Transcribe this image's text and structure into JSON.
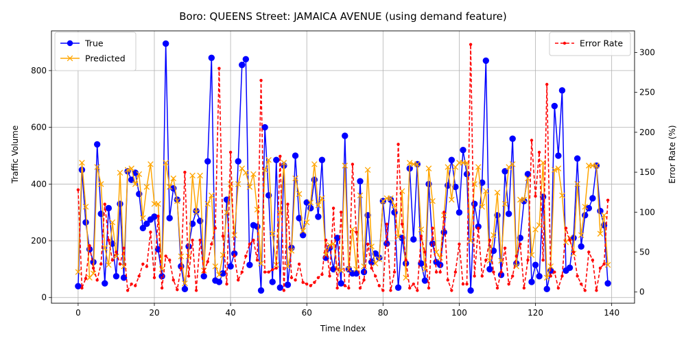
{
  "chart_data": {
    "type": "line",
    "title": "Boro: QUEENS Street: JAMAICA AVENUE (using demand feature)",
    "xlabel": "Time Index",
    "ylabel": "Traffic Volume",
    "y2label": "Error Rate (%)",
    "xlim": [
      -7,
      146
    ],
    "ylim": [
      -20,
      940
    ],
    "y2lim": [
      -14,
      327
    ],
    "xticks": [
      0,
      20,
      40,
      60,
      80,
      100,
      120,
      140
    ],
    "yticks": [
      0,
      200,
      400,
      600,
      800
    ],
    "y2ticks": [
      0,
      50,
      100,
      150,
      200,
      250,
      300
    ],
    "grid": true,
    "legend_left_position": "upper-left",
    "legend_right_position": "upper-right",
    "series": [
      {
        "name": "True",
        "axis": "left",
        "color": "#0000ff",
        "marker": "circle",
        "values": [
          40,
          450,
          265,
          170,
          125,
          540,
          295,
          50,
          315,
          190,
          75,
          330,
          70,
          445,
          415,
          440,
          365,
          245,
          260,
          275,
          285,
          170,
          75,
          895,
          280,
          385,
          345,
          110,
          30,
          180,
          260,
          305,
          270,
          75,
          480,
          845,
          60,
          55,
          85,
          345,
          110,
          155,
          480,
          820,
          840,
          115,
          255,
          250,
          25,
          600,
          360,
          55,
          485,
          35,
          465,
          45,
          175,
          500,
          280,
          220,
          335,
          315,
          415,
          285,
          485,
          140,
          175,
          100,
          210,
          50,
          570,
          100,
          85,
          85,
          410,
          90,
          290,
          125,
          155,
          140,
          340,
          190,
          345,
          300,
          35,
          210,
          120,
          455,
          205,
          470,
          120,
          60,
          400,
          190,
          125,
          115,
          230,
          395,
          485,
          390,
          300,
          520,
          435,
          25,
          330,
          250,
          405,
          835,
          100,
          165,
          290,
          80,
          445,
          295,
          560,
          120,
          210,
          340,
          435,
          55,
          115,
          75,
          355,
          30,
          95,
          675,
          500,
          730,
          95,
          105,
          210,
          490,
          180,
          290,
          315,
          350,
          465,
          305,
          255,
          50
        ]
      },
      {
        "name": "Predicted",
        "axis": "left",
        "color": "#ffa500",
        "marker": "x",
        "values": [
          90,
          475,
          320,
          70,
          85,
          460,
          400,
          175,
          115,
          265,
          145,
          440,
          110,
          450,
          455,
          400,
          435,
          280,
          390,
          470,
          330,
          330,
          100,
          475,
          390,
          420,
          340,
          145,
          50,
          145,
          430,
          300,
          430,
          95,
          330,
          360,
          110,
          80,
          150,
          300,
          400,
          220,
          400,
          455,
          440,
          390,
          435,
          310,
          120,
          450,
          485,
          225,
          115,
          300,
          475,
          110,
          165,
          420,
          365,
          235,
          265,
          335,
          470,
          325,
          350,
          150,
          185,
          190,
          100,
          95,
          465,
          100,
          240,
          100,
          360,
          110,
          450,
          180,
          120,
          135,
          340,
          350,
          350,
          325,
          215,
          375,
          70,
          475,
          470,
          470,
          240,
          100,
          455,
          340,
          160,
          140,
          290,
          460,
          345,
          460,
          475,
          475,
          475,
          200,
          400,
          460,
          320,
          375,
          130,
          220,
          370,
          130,
          330,
          460,
          470,
          110,
          345,
          345,
          420,
          150,
          240,
          255,
          475,
          70,
          110,
          450,
          455,
          360,
          195,
          210,
          155,
          400,
          220,
          320,
          465,
          465,
          465,
          225,
          290,
          115
        ]
      },
      {
        "name": "Error Rate",
        "axis": "right",
        "color": "#ff0000",
        "dashed": true,
        "marker": "dot",
        "values": [
          128,
          5,
          17,
          58,
          30,
          15,
          35,
          110,
          65,
          40,
          50,
          35,
          55,
          2,
          10,
          8,
          20,
          35,
          32,
          75,
          18,
          95,
          5,
          45,
          40,
          15,
          3,
          30,
          150,
          20,
          65,
          2,
          65,
          25,
          38,
          60,
          80,
          280,
          70,
          10,
          175,
          45,
          15,
          25,
          45,
          60,
          65,
          40,
          265,
          25,
          25,
          28,
          30,
          170,
          2,
          110,
          18,
          15,
          35,
          12,
          10,
          8,
          12,
          18,
          22,
          65,
          20,
          105,
          5,
          100,
          8,
          5,
          160,
          75,
          5,
          15,
          60,
          30,
          20,
          8,
          2,
          85,
          2,
          25,
          185,
          85,
          40,
          5,
          10,
          2,
          70,
          50,
          5,
          80,
          25,
          25,
          100,
          15,
          2,
          25,
          60,
          10,
          10,
          310,
          20,
          80,
          20,
          40,
          65,
          25,
          5,
          25,
          55,
          10,
          20,
          45,
          60,
          5,
          40,
          190,
          120,
          175,
          40,
          260,
          20,
          25,
          5,
          20,
          80,
          65,
          50,
          20,
          10,
          2,
          50,
          40,
          2,
          30,
          35,
          115
        ]
      }
    ]
  }
}
